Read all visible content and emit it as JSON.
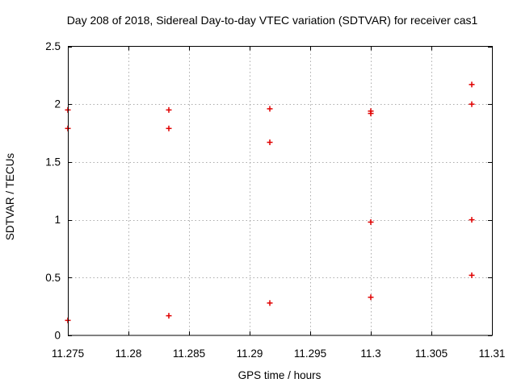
{
  "chart_data": {
    "type": "scatter",
    "title": "Day 208 of 2018, Sidereal Day-to-day VTEC variation (SDTVAR) for receiver cas1",
    "xlabel": "GPS time / hours",
    "ylabel": "SDTVAR / TECUs",
    "xlim": [
      11.275,
      11.31
    ],
    "ylim": [
      0,
      2.5
    ],
    "xticks": {
      "values": [
        11.275,
        11.28,
        11.285,
        11.29,
        11.295,
        11.3,
        11.305,
        11.31
      ],
      "labels": [
        "11.275",
        "11.28",
        "11.285",
        "11.29",
        "11.295",
        "11.3",
        "11.305",
        "11.31"
      ]
    },
    "yticks": {
      "values": [
        0,
        0.5,
        1,
        1.5,
        2,
        2.5
      ],
      "labels": [
        "0",
        "0.5",
        "1",
        "1.5",
        "2",
        "2.5"
      ]
    },
    "grid": true,
    "legend": "none",
    "marker": "plus",
    "colors": {
      "marker": "#e00000",
      "grid": "#ababab",
      "frame": "#000000",
      "background": "#ffffff",
      "text": "#000000"
    },
    "points": [
      [
        11.275,
        1.95
      ],
      [
        11.275,
        1.79
      ],
      [
        11.275,
        0.13
      ],
      [
        11.283333,
        1.95
      ],
      [
        11.283333,
        1.79
      ],
      [
        11.283333,
        0.17
      ],
      [
        11.291667,
        1.96
      ],
      [
        11.291667,
        1.67
      ],
      [
        11.291667,
        0.28
      ],
      [
        11.3,
        1.94
      ],
      [
        11.3,
        1.92
      ],
      [
        11.3,
        0.98
      ],
      [
        11.3,
        0.33
      ],
      [
        11.308333,
        2.17
      ],
      [
        11.308333,
        2.0
      ],
      [
        11.308333,
        1.0
      ],
      [
        11.308333,
        0.52
      ]
    ]
  }
}
